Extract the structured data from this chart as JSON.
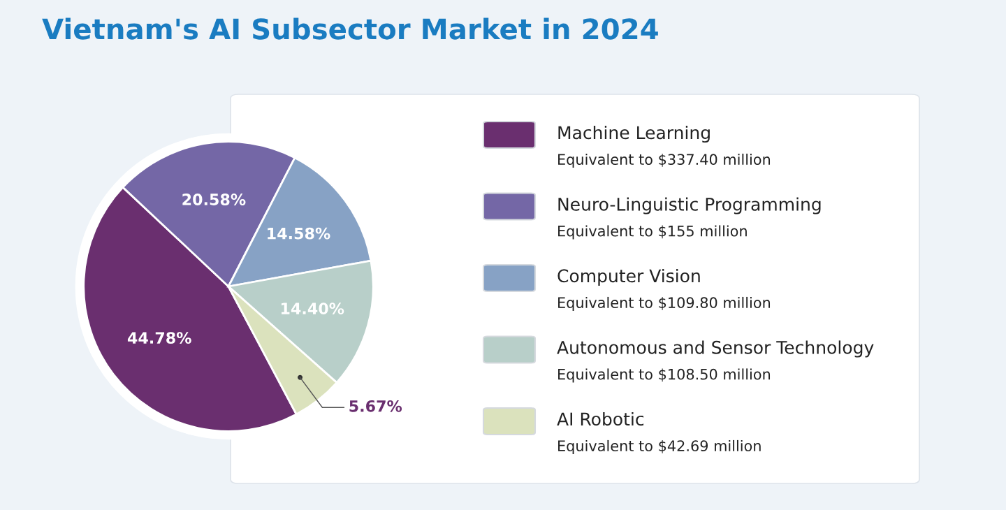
{
  "chart_data": {
    "type": "pie",
    "title": "Vietnam's AI Subsector Market in 2024",
    "categories": [
      "Machine Learning",
      "Neuro-Linguistic Programming",
      "Computer Vision",
      "Autonomous and Sensor Technology",
      "AI Robotic"
    ],
    "values": [
      44.78,
      20.58,
      14.58,
      14.4,
      5.67
    ],
    "colors": [
      "#6a2f6f",
      "#7467a6",
      "#87a2c5",
      "#b8cfc9",
      "#dbe2bd"
    ],
    "value_labels": [
      "44.78%",
      "20.58%",
      "14.58%",
      "14.40%",
      "5.67%"
    ],
    "legend": "right",
    "annotations": [
      "Equivalent to $337.40 million",
      "Equivalent to $155 million",
      "Equivalent to $109.80 million",
      "Equivalent to $108.50 million",
      "Equivalent to $42.69 million"
    ]
  }
}
